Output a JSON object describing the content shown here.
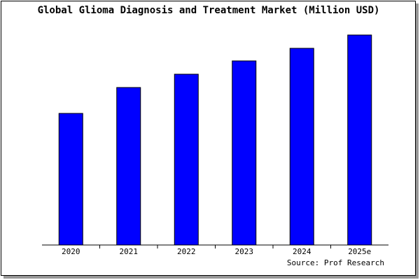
{
  "chart_data": {
    "type": "bar",
    "title": "Global Glioma Diagnosis and Treatment Market (Million USD)",
    "categories": [
      "2020",
      "2021",
      "2022",
      "2023",
      "2024",
      "2025e"
    ],
    "values": [
      188,
      225,
      244,
      263,
      281,
      300
    ],
    "color": "#0000ff",
    "ylim": [
      0,
      300
    ],
    "source": "Source: Prof Research"
  }
}
